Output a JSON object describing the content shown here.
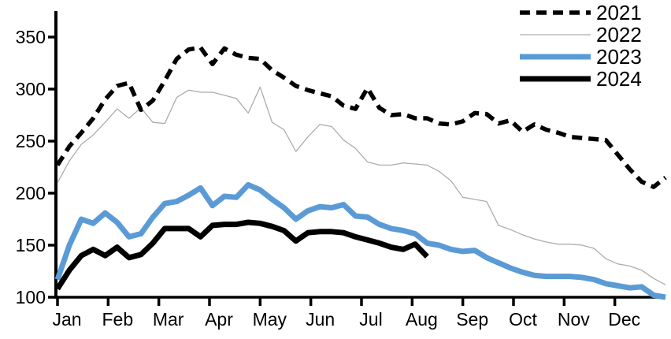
{
  "chart_data": {
    "type": "line",
    "title": "",
    "xlabel": "",
    "ylabel": "",
    "x_unit": "weekly",
    "x_tick_labels": [
      "Jan",
      "Feb",
      "Mar",
      "Apr",
      "May",
      "Jun",
      "Jul",
      "Aug",
      "Sep",
      "Oct",
      "Nov",
      "Dec"
    ],
    "y_ticks": [
      100,
      150,
      200,
      250,
      300,
      350
    ],
    "y_tick_labels": [
      "100",
      "150",
      "200",
      "250",
      "300",
      "350"
    ],
    "ylim": [
      100,
      375
    ],
    "grid": false,
    "legend_position": "top-right",
    "axis_color": "#000000",
    "background_color": "#ffffff",
    "series": [
      {
        "name": "2021",
        "style": "dashed",
        "color": "#000000",
        "width": 5.5,
        "dash": "13 8",
        "values": [
          227,
          245,
          258,
          272,
          290,
          303,
          306,
          280,
          289,
          308,
          329,
          338,
          340,
          324,
          339,
          333,
          330,
          329,
          318,
          311,
          303,
          299,
          296,
          293,
          284,
          281,
          301,
          282,
          275,
          276,
          272,
          272,
          267,
          266,
          269,
          277,
          276,
          267,
          270,
          259,
          266,
          261,
          258,
          254,
          253,
          252,
          251,
          237,
          223,
          211,
          206,
          215
        ]
      },
      {
        "name": "2022",
        "style": "solid",
        "color": "#ACACAC",
        "width": 1.3,
        "dash": "",
        "values": [
          210,
          231,
          247,
          256,
          268,
          281,
          272,
          282,
          268,
          267,
          292,
          299,
          297,
          297,
          294,
          291,
          277,
          302,
          268,
          261,
          240,
          254,
          266,
          264,
          251,
          243,
          230,
          227,
          227,
          229,
          228,
          227,
          221,
          212,
          196,
          194,
          192,
          169,
          165,
          160,
          156,
          153,
          151,
          151,
          150,
          147,
          137,
          132,
          130,
          126,
          118,
          112
        ]
      },
      {
        "name": "2023",
        "style": "solid",
        "color": "#5B9BD5",
        "width": 7,
        "dash": "",
        "values": [
          117,
          150,
          175,
          171,
          181,
          172,
          158,
          161,
          177,
          190,
          192,
          198,
          205,
          188,
          197,
          196,
          208,
          203,
          194,
          186,
          175,
          183,
          187,
          186,
          189,
          178,
          177,
          170,
          166,
          164,
          161,
          152,
          150,
          146,
          144,
          145,
          138,
          133,
          128,
          124,
          121,
          120,
          120,
          120,
          119,
          117,
          113,
          111,
          109,
          110,
          102,
          100
        ]
      },
      {
        "name": "2024",
        "style": "solid",
        "color": "#000000",
        "width": 7,
        "dash": "",
        "values": [
          108,
          126,
          140,
          146,
          140,
          148,
          138,
          141,
          152,
          166,
          166,
          166,
          158,
          169,
          170,
          170,
          172,
          171,
          168,
          164,
          154,
          162,
          163,
          163,
          162,
          158,
          155,
          152,
          148,
          146,
          151,
          139
        ]
      }
    ]
  }
}
